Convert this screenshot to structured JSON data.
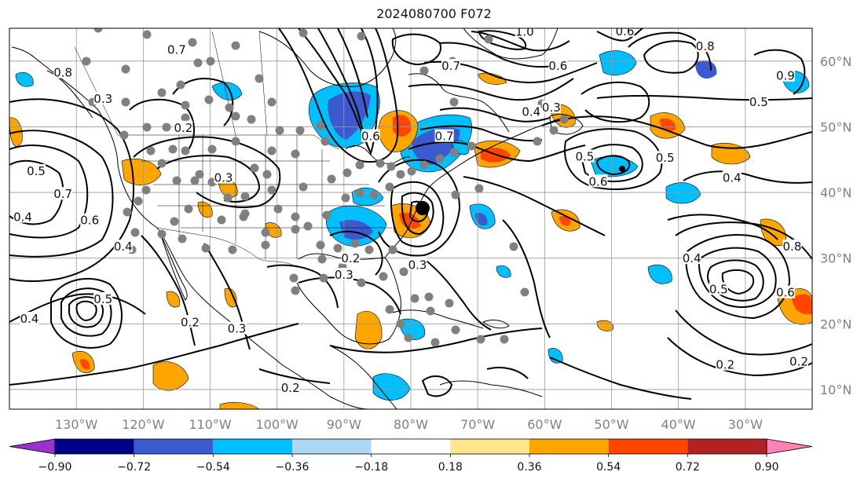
{
  "title": "2024080700 F072",
  "map": {
    "lon_range": [
      -140,
      -20
    ],
    "lat_range": [
      7,
      65
    ],
    "lon_ticks": [
      {
        "value": -130,
        "label": "130°W"
      },
      {
        "value": -120,
        "label": "120°W"
      },
      {
        "value": -110,
        "label": "110°W"
      },
      {
        "value": -100,
        "label": "100°W"
      },
      {
        "value": -90,
        "label": "90°W"
      },
      {
        "value": -80,
        "label": "80°W"
      },
      {
        "value": -70,
        "label": "70°W"
      },
      {
        "value": -60,
        "label": "60°W"
      },
      {
        "value": -50,
        "label": "50°W"
      },
      {
        "value": -40,
        "label": "40°W"
      },
      {
        "value": -30,
        "label": "30°W"
      }
    ],
    "lat_ticks": [
      {
        "value": 10,
        "label": "10°N"
      },
      {
        "value": 20,
        "label": "20°N"
      },
      {
        "value": 30,
        "label": "30°N"
      },
      {
        "value": 40,
        "label": "40°N"
      },
      {
        "value": 50,
        "label": "50°N"
      },
      {
        "value": 60,
        "label": "60°N"
      }
    ],
    "grid": true
  },
  "colorbar": {
    "levels": [
      "−0.90",
      "−0.72",
      "−0.54",
      "−0.36",
      "−0.18",
      "0.18",
      "0.36",
      "0.54",
      "0.72",
      "0.90"
    ],
    "colors": [
      "#9932cc",
      "#00008b",
      "#3c5acd",
      "#00bfff",
      "#add8f5",
      "#ffffff",
      "#ffe68c",
      "#ffa500",
      "#ff4500",
      "#b22222",
      "#ff82b4"
    ],
    "extend": "both"
  },
  "contour_labels": [
    {
      "text": "1.0",
      "lon": -63,
      "lat": 64.2
    },
    {
      "text": "0.6",
      "lon": -48,
      "lat": 64.3
    },
    {
      "text": "0.7",
      "lon": -115,
      "lat": 61.5
    },
    {
      "text": "0.8",
      "lon": -36,
      "lat": 62
    },
    {
      "text": "0.7",
      "lon": -74,
      "lat": 59
    },
    {
      "text": "0.6",
      "lon": -58,
      "lat": 59
    },
    {
      "text": "0.9",
      "lon": -24,
      "lat": 57.5
    },
    {
      "text": "0.8",
      "lon": -132,
      "lat": 58
    },
    {
      "text": "0.3",
      "lon": -126,
      "lat": 54
    },
    {
      "text": "0.5",
      "lon": -28,
      "lat": 53.5
    },
    {
      "text": "0.4",
      "lon": -62,
      "lat": 52
    },
    {
      "text": "0.3",
      "lon": -59,
      "lat": 52.7
    },
    {
      "text": "0.2",
      "lon": -114,
      "lat": 49.6
    },
    {
      "text": "0.6",
      "lon": -86,
      "lat": 48.3
    },
    {
      "text": "0.7",
      "lon": -75,
      "lat": 48.3
    },
    {
      "text": "0.5",
      "lon": -42,
      "lat": 45
    },
    {
      "text": "0.5",
      "lon": -54,
      "lat": 45.2
    },
    {
      "text": "0.4",
      "lon": -32,
      "lat": 42
    },
    {
      "text": "0.6",
      "lon": -52,
      "lat": 41.4
    },
    {
      "text": "0.3",
      "lon": -108,
      "lat": 42
    },
    {
      "text": "0.5",
      "lon": -136,
      "lat": 43
    },
    {
      "text": "0.7",
      "lon": -132,
      "lat": 39.5
    },
    {
      "text": "0.6",
      "lon": -128,
      "lat": 35.5
    },
    {
      "text": "0.4",
      "lon": -138,
      "lat": 36
    },
    {
      "text": "0.4",
      "lon": -123,
      "lat": 31.5
    },
    {
      "text": "0.2",
      "lon": -89,
      "lat": 29.7
    },
    {
      "text": "0.3",
      "lon": -90,
      "lat": 27.2
    },
    {
      "text": "0.3",
      "lon": -79,
      "lat": 28.7
    },
    {
      "text": "0.4",
      "lon": -38,
      "lat": 29.7
    },
    {
      "text": "0.8",
      "lon": -23,
      "lat": 31.5
    },
    {
      "text": "0.5",
      "lon": -34,
      "lat": 25
    },
    {
      "text": "0.6",
      "lon": -24,
      "lat": 24.5
    },
    {
      "text": "0.5",
      "lon": -126,
      "lat": 23.5
    },
    {
      "text": "0.4",
      "lon": -137,
      "lat": 20.5
    },
    {
      "text": "0.2",
      "lon": -113,
      "lat": 20
    },
    {
      "text": "0.3",
      "lon": -106,
      "lat": 19
    },
    {
      "text": "0.2",
      "lon": -33,
      "lat": 13.5
    },
    {
      "text": "0.2",
      "lon": -22,
      "lat": 14
    },
    {
      "text": "0.2",
      "lon": -98,
      "lat": 10
    }
  ]
}
